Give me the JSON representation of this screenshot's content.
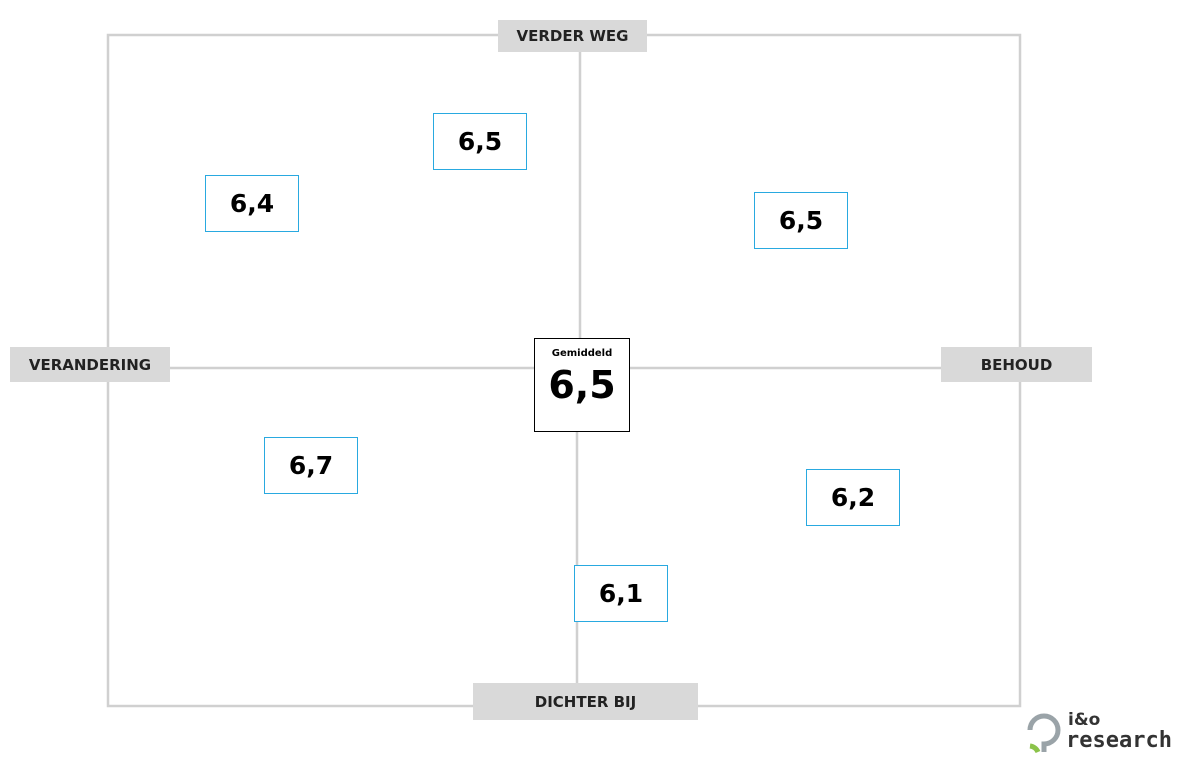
{
  "axes": {
    "top": "VERDER WEG",
    "bottom": "DICHTER BIJ",
    "left": "VERANDERING",
    "right": "BEHOUD"
  },
  "center": {
    "label": "Gemiddeld",
    "value": "6,5"
  },
  "boxes": [
    "6,5",
    "6,4",
    "6,5",
    "6,7",
    "6,2",
    "6,1"
  ],
  "logo": {
    "line1": "i&o",
    "line2": "research"
  }
}
